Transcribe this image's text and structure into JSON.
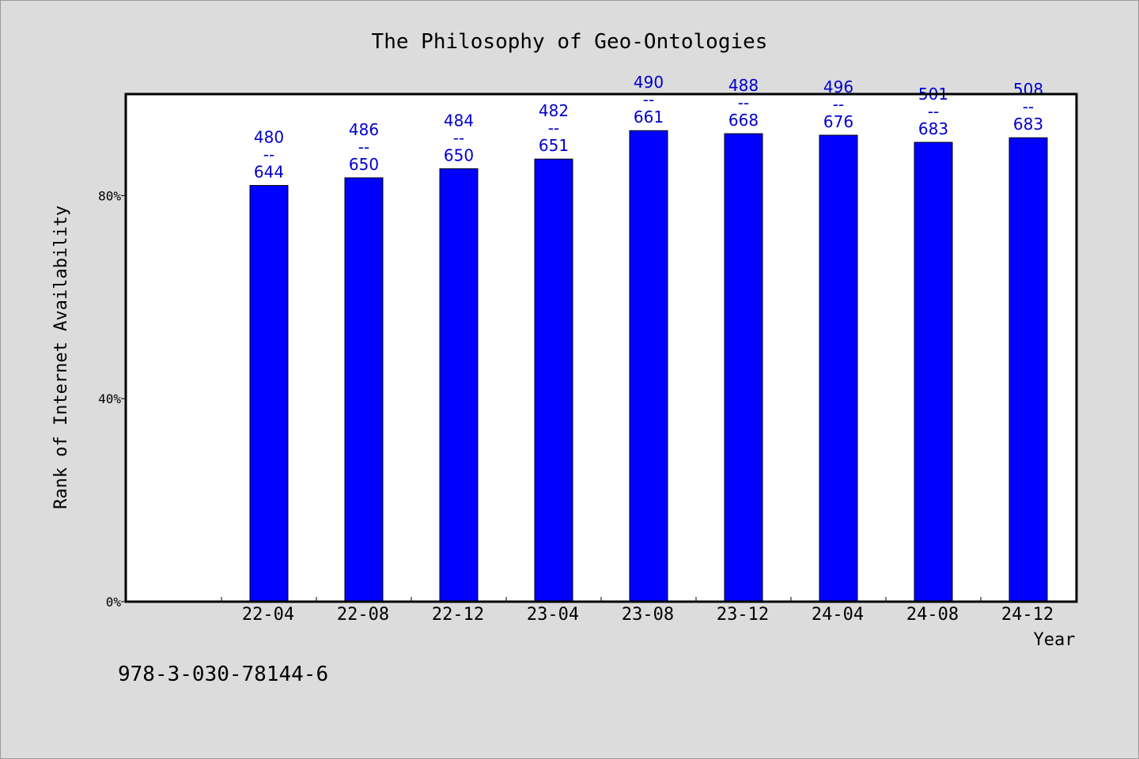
{
  "chart_data": {
    "type": "bar",
    "title": "The Philosophy of Geo-Ontologies",
    "xlabel": "Year",
    "ylabel": "Rank of Internet Availability",
    "categories": [
      "22-04",
      "22-08",
      "22-12",
      "23-04",
      "23-08",
      "23-12",
      "24-04",
      "24-08",
      "24-12"
    ],
    "values": [
      0.82,
      0.835,
      0.853,
      0.872,
      0.928,
      0.922,
      0.919,
      0.905,
      0.914
    ],
    "data_labels": [
      [
        "480",
        "--",
        "644"
      ],
      [
        "486",
        "--",
        "650"
      ],
      [
        "484",
        "--",
        "650"
      ],
      [
        "482",
        "--",
        "651"
      ],
      [
        "490",
        "--",
        "661"
      ],
      [
        "488",
        "--",
        "668"
      ],
      [
        "496",
        "--",
        "676"
      ],
      [
        "501",
        "--",
        "683"
      ],
      [
        "508",
        "--",
        "683"
      ]
    ],
    "yticks": [
      {
        "value": 0,
        "label": "0%"
      },
      {
        "value": 0.4,
        "label": "40%"
      },
      {
        "value": 0.8,
        "label": "80%"
      }
    ],
    "ylim": [
      0,
      1.0
    ],
    "grid": false,
    "colors": {
      "bar": "#0000ff",
      "bar_edge": "#000000",
      "data_label": "#0000cc",
      "plot_bg": "#ffffff",
      "background": "#dcdcdc"
    }
  },
  "footer_text": "978-3-030-78144-6"
}
